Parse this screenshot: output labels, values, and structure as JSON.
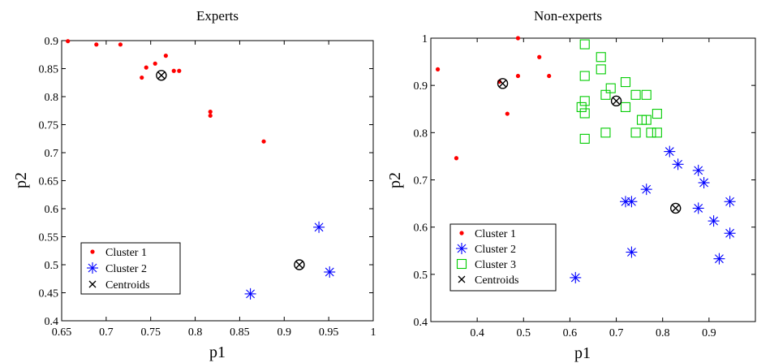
{
  "chart_data": [
    {
      "type": "scatter",
      "title": "Experts",
      "xlabel": "p1",
      "ylabel": "p2",
      "xlim": [
        0.65,
        1.0
      ],
      "ylim": [
        0.4,
        0.9
      ],
      "xticks": [
        "0.65",
        "0.7",
        "0.75",
        "0.8",
        "0.85",
        "0.9",
        "0.95",
        "1"
      ],
      "yticks": [
        "0.4",
        "0.45",
        "0.5",
        "0.55",
        "0.6",
        "0.65",
        "0.7",
        "0.75",
        "0.8",
        "0.85",
        "0.9"
      ],
      "xtick_values": [
        0.65,
        0.7,
        0.75,
        0.8,
        0.85,
        0.9,
        0.95,
        1.0
      ],
      "ytick_values": [
        0.4,
        0.45,
        0.5,
        0.55,
        0.6,
        0.65,
        0.7,
        0.75,
        0.8,
        0.85,
        0.9
      ],
      "legend_position": "bottom-left",
      "grid": false,
      "series": [
        {
          "name": "Cluster 1",
          "marker": "dot",
          "color": "#ff0000",
          "points": [
            [
              0.657,
              0.899
            ],
            [
              0.689,
              0.893
            ],
            [
              0.716,
              0.893
            ],
            [
              0.74,
              0.834
            ],
            [
              0.745,
              0.852
            ],
            [
              0.755,
              0.859
            ],
            [
              0.767,
              0.873
            ],
            [
              0.776,
              0.846
            ],
            [
              0.782,
              0.846
            ],
            [
              0.817,
              0.773
            ],
            [
              0.817,
              0.766
            ],
            [
              0.877,
              0.72
            ]
          ]
        },
        {
          "name": "Cluster 2",
          "marker": "asterisk",
          "color": "#0000ff",
          "points": [
            [
              0.862,
              0.448
            ],
            [
              0.939,
              0.567
            ],
            [
              0.951,
              0.487
            ]
          ]
        },
        {
          "name": "Centroids",
          "marker": "x",
          "color": "#000000",
          "points": [
            [
              0.762,
              0.838
            ],
            [
              0.917,
              0.5
            ]
          ]
        }
      ]
    },
    {
      "type": "scatter",
      "title": "Non-experts",
      "xlabel": "p1",
      "ylabel": "p2",
      "xlim": [
        0.3,
        1.0
      ],
      "ylim": [
        0.4,
        1.0
      ],
      "xticks": [
        "0.4",
        "0.5",
        "0.6",
        "0.7",
        "0.8",
        "0.9"
      ],
      "yticks": [
        "0.4",
        "0.5",
        "0.6",
        "0.7",
        "0.8",
        "0.9",
        "1"
      ],
      "xtick_values": [
        0.4,
        0.5,
        0.6,
        0.7,
        0.8,
        0.9
      ],
      "ytick_values": [
        0.4,
        0.5,
        0.6,
        0.7,
        0.8,
        0.9,
        1.0
      ],
      "legend_position": "bottom-left",
      "grid": false,
      "series": [
        {
          "name": "Cluster 1",
          "marker": "dot",
          "color": "#ff0000",
          "points": [
            [
              0.315,
              0.934
            ],
            [
              0.355,
              0.746
            ],
            [
              0.448,
              0.908
            ],
            [
              0.465,
              0.84
            ],
            [
              0.488,
              1.0
            ],
            [
              0.488,
              0.92
            ],
            [
              0.534,
              0.96
            ],
            [
              0.555,
              0.92
            ]
          ]
        },
        {
          "name": "Cluster 2",
          "marker": "asterisk",
          "color": "#0000ff",
          "points": [
            [
              0.612,
              0.493
            ],
            [
              0.72,
              0.654
            ],
            [
              0.733,
              0.654
            ],
            [
              0.733,
              0.547
            ],
            [
              0.765,
              0.68
            ],
            [
              0.815,
              0.76
            ],
            [
              0.833,
              0.733
            ],
            [
              0.877,
              0.72
            ],
            [
              0.877,
              0.64
            ],
            [
              0.889,
              0.694
            ],
            [
              0.91,
              0.613
            ],
            [
              0.922,
              0.533
            ],
            [
              0.945,
              0.654
            ],
            [
              0.945,
              0.587
            ]
          ]
        },
        {
          "name": "Cluster 3",
          "marker": "square",
          "color": "#00cc00",
          "points": [
            [
              0.625,
              0.854
            ],
            [
              0.632,
              0.987
            ],
            [
              0.632,
              0.92
            ],
            [
              0.632,
              0.867
            ],
            [
              0.632,
              0.841
            ],
            [
              0.632,
              0.787
            ],
            [
              0.667,
              0.96
            ],
            [
              0.667,
              0.934
            ],
            [
              0.677,
              0.88
            ],
            [
              0.677,
              0.8
            ],
            [
              0.688,
              0.894
            ],
            [
              0.72,
              0.907
            ],
            [
              0.72,
              0.854
            ],
            [
              0.742,
              0.88
            ],
            [
              0.742,
              0.8
            ],
            [
              0.755,
              0.827
            ],
            [
              0.765,
              0.88
            ],
            [
              0.765,
              0.827
            ],
            [
              0.775,
              0.8
            ],
            [
              0.788,
              0.84
            ],
            [
              0.788,
              0.8
            ]
          ]
        },
        {
          "name": "Centroids",
          "marker": "x",
          "color": "#000000",
          "points": [
            [
              0.455,
              0.904
            ],
            [
              0.7,
              0.867
            ],
            [
              0.828,
              0.64
            ]
          ]
        }
      ]
    }
  ]
}
